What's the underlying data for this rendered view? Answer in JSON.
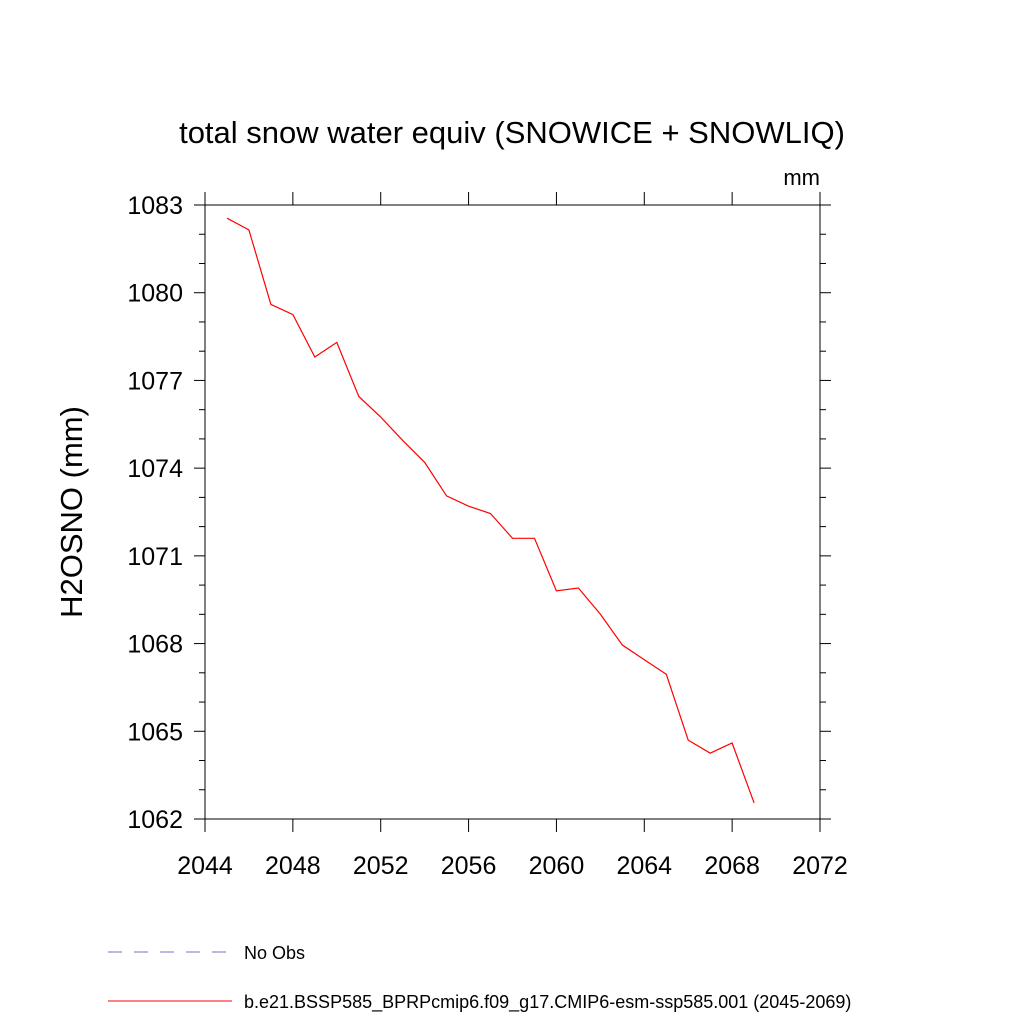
{
  "chart_data": {
    "type": "line",
    "title": "total snow water equiv (SNOWICE + SNOWLIQ)",
    "units_label": "mm",
    "ylabel": "H2OSNO  (mm)",
    "xlabel": "",
    "xlim": [
      2044,
      2072
    ],
    "ylim": [
      1062,
      1083
    ],
    "x_ticks": [
      2044,
      2048,
      2052,
      2056,
      2060,
      2064,
      2068,
      2072
    ],
    "y_ticks": [
      1062,
      1065,
      1068,
      1071,
      1074,
      1077,
      1080,
      1083
    ],
    "grid": false,
    "legend_position": "bottom-left",
    "legend": [
      {
        "label": "No Obs",
        "color": "#7b6cc4",
        "style": "dashed"
      },
      {
        "label": "b.e21.BSSP585_BPRPcmip6.f09_g17.CMIP6-esm-ssp585.001 (2045-2069)",
        "color": "#ff0000",
        "style": "solid"
      }
    ],
    "series": [
      {
        "name": "b.e21.BSSP585_BPRPcmip6.f09_g17.CMIP6-esm-ssp585.001 (2045-2069)",
        "color": "#ff0000",
        "x": [
          2045,
          2046,
          2047,
          2048,
          2049,
          2050,
          2051,
          2052,
          2053,
          2054,
          2055,
          2056,
          2057,
          2058,
          2059,
          2060,
          2061,
          2062,
          2063,
          2064,
          2065,
          2066,
          2067,
          2068,
          2069
        ],
        "y": [
          1082.55,
          1082.15,
          1079.6,
          1079.25,
          1077.8,
          1078.3,
          1076.45,
          1075.75,
          1074.95,
          1074.2,
          1073.05,
          1072.7,
          1072.45,
          1071.6,
          1071.6,
          1069.8,
          1069.9,
          1069.0,
          1067.95,
          1067.45,
          1066.95,
          1064.7,
          1064.25,
          1064.6,
          1062.55
        ]
      }
    ]
  }
}
